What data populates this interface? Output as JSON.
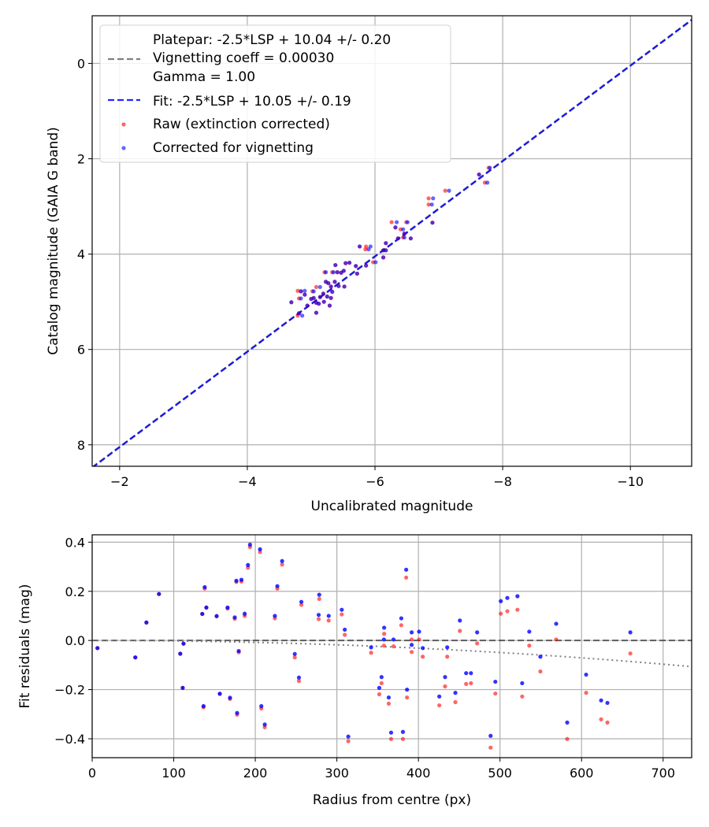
{
  "chart_data": [
    {
      "type": "scatter",
      "xlabel": "Uncalibrated magnitude",
      "ylabel": "Catalog magnitude (GAIA G band)",
      "xlim": [
        -1.57,
        -10.96
      ],
      "ylim": [
        8.45,
        -1.0
      ],
      "xticks": [
        -2,
        -4,
        -6,
        -8,
        -10
      ],
      "xtick_labels": [
        "−2",
        "−4",
        "−6",
        "−8",
        "−10"
      ],
      "yticks": [
        0,
        2,
        4,
        6,
        8
      ],
      "ytick_labels": [
        "0",
        "2",
        "4",
        "6",
        "8"
      ],
      "grid": true,
      "legend_placement": "top-left",
      "lines": [
        {
          "name": "platepar",
          "slope": 1,
          "intercept": 10.04,
          "color": "#808080",
          "style": "dashed"
        },
        {
          "name": "fit",
          "slope": 1,
          "intercept": 10.05,
          "color": "#0000ff",
          "style": "dashed"
        }
      ],
      "legend": [
        {
          "kind": "line",
          "color": "#808080",
          "lines": [
            "Platepar: -2.5*LSP + 10.04 +/- 0.20",
            "Vignetting coeff = 0.00030",
            "Gamma = 1.00"
          ]
        },
        {
          "kind": "line",
          "color": "#0000ff",
          "lines": [
            "Fit: -2.5*LSP + 10.05 +/- 0.19"
          ]
        },
        {
          "kind": "dot",
          "color": "#ff0000",
          "lines": [
            "Raw (extinction corrected)"
          ]
        },
        {
          "kind": "dot",
          "color": "#0000ff",
          "lines": [
            "Corrected for vignetting"
          ]
        }
      ],
      "series_note": "points are [raw_x, corrected_x, catalog_mag]",
      "points": [
        [
          -7.78,
          -7.8,
          2.19
        ],
        [
          -7.63,
          -7.63,
          2.33
        ],
        [
          -7.72,
          -7.76,
          2.5
        ],
        [
          -7.1,
          -7.16,
          2.67
        ],
        [
          -6.84,
          -6.91,
          2.83
        ],
        [
          -6.84,
          -6.89,
          2.96
        ],
        [
          -6.9,
          -6.9,
          3.34
        ],
        [
          -6.26,
          -6.34,
          3.33
        ],
        [
          -6.49,
          -6.51,
          3.33
        ],
        [
          -6.32,
          -6.32,
          3.44
        ],
        [
          -6.4,
          -6.44,
          3.48
        ],
        [
          -6.46,
          -6.46,
          3.57
        ],
        [
          -6.36,
          -6.36,
          3.67
        ],
        [
          -6.56,
          -6.56,
          3.67
        ],
        [
          -6.44,
          -6.46,
          3.65
        ],
        [
          -5.76,
          -5.76,
          3.84
        ],
        [
          -5.86,
          -5.93,
          3.84
        ],
        [
          -5.85,
          -5.9,
          3.9
        ],
        [
          -6.17,
          -6.17,
          3.77
        ],
        [
          -6.13,
          -6.13,
          3.92
        ],
        [
          -6.17,
          -6.17,
          3.92
        ],
        [
          -6.13,
          -6.13,
          4.07
        ],
        [
          -5.97,
          -6.01,
          4.17
        ],
        [
          -5.86,
          -5.86,
          4.24
        ],
        [
          -5.7,
          -5.7,
          4.25
        ],
        [
          -5.72,
          -5.72,
          4.41
        ],
        [
          -5.6,
          -5.6,
          4.18
        ],
        [
          -5.54,
          -5.54,
          4.19
        ],
        [
          -5.38,
          -5.38,
          4.23
        ],
        [
          -5.21,
          -5.23,
          4.38
        ],
        [
          -5.33,
          -5.35,
          4.38
        ],
        [
          -5.41,
          -5.41,
          4.38
        ],
        [
          -5.51,
          -5.51,
          4.35
        ],
        [
          -5.47,
          -5.47,
          4.39
        ],
        [
          -5.43,
          -5.43,
          4.67
        ],
        [
          -5.52,
          -5.52,
          4.68
        ],
        [
          -5.37,
          -5.37,
          4.58
        ],
        [
          -5.23,
          -5.23,
          4.58
        ],
        [
          -5.27,
          -5.27,
          4.61
        ],
        [
          -5.08,
          -5.14,
          4.69
        ],
        [
          -5.31,
          -5.31,
          4.68
        ],
        [
          -5.33,
          -5.33,
          4.79
        ],
        [
          -4.79,
          -4.9,
          4.77
        ],
        [
          -4.84,
          -4.84,
          4.78
        ],
        [
          -4.9,
          -4.9,
          4.85
        ],
        [
          -5.02,
          -5.04,
          4.78
        ],
        [
          -5.19,
          -5.19,
          4.83
        ],
        [
          -5.25,
          -5.25,
          4.89
        ],
        [
          -5.14,
          -5.14,
          4.9
        ],
        [
          -5.2,
          -5.2,
          5.0
        ],
        [
          -5.29,
          -5.29,
          5.08
        ],
        [
          -5.31,
          -5.31,
          4.92
        ],
        [
          -5.0,
          -5.0,
          4.94
        ],
        [
          -5.08,
          -5.08,
          5.02
        ],
        [
          -5.12,
          -5.12,
          5.04
        ],
        [
          -4.81,
          -4.84,
          4.93
        ],
        [
          -4.69,
          -4.69,
          5.01
        ],
        [
          -5.04,
          -5.04,
          4.92
        ],
        [
          -4.79,
          -4.86,
          5.29
        ],
        [
          -5.08,
          -5.08,
          5.23
        ],
        [
          -4.81,
          -4.81,
          5.24
        ],
        [
          -4.94,
          -4.94,
          5.08
        ]
      ]
    },
    {
      "type": "scatter",
      "xlabel": "Radius from centre (px)",
      "ylabel": "Fit residuals (mag)",
      "xlim": [
        0,
        735
      ],
      "ylim": [
        -0.477,
        0.43
      ],
      "xticks": [
        0,
        100,
        200,
        300,
        400,
        500,
        600,
        700
      ],
      "xtick_labels": [
        "0",
        "100",
        "200",
        "300",
        "400",
        "500",
        "600",
        "700"
      ],
      "yticks": [
        0.4,
        0.2,
        0.0,
        -0.2,
        -0.4
      ],
      "ytick_labels": [
        "0.4",
        "0.2",
        "0.0",
        "−0.2",
        "−0.4"
      ],
      "grid": true,
      "zero_line": {
        "y": 0,
        "color": "#404040",
        "style": "dashed"
      },
      "vignetting_curve": {
        "coeff": 0.0003,
        "color": "#808080",
        "style": "dotted"
      },
      "series_note": "points are [radius, raw_residual, corrected_residual]",
      "raw_color": "#ff0000",
      "corrected_color": "#0000ff",
      "points": [
        [
          6.5,
          -0.031,
          -0.031
        ],
        [
          52.9,
          -0.069,
          -0.069
        ],
        [
          66.5,
          0.073,
          0.073
        ],
        [
          81.9,
          0.189,
          0.189
        ],
        [
          108,
          -0.054,
          -0.054
        ],
        [
          112,
          -0.013,
          -0.013
        ],
        [
          111,
          -0.193,
          -0.193
        ],
        [
          138,
          0.211,
          0.217
        ],
        [
          140,
          0.134,
          0.134
        ],
        [
          135,
          0.108,
          0.108
        ],
        [
          136.5,
          -0.272,
          -0.267
        ],
        [
          152.6,
          0.099,
          0.099
        ],
        [
          156.5,
          -0.217,
          -0.217
        ],
        [
          166,
          0.13,
          0.134
        ],
        [
          169,
          -0.238,
          -0.233
        ],
        [
          174.8,
          0.088,
          0.094
        ],
        [
          176.8,
          0.238,
          0.243
        ],
        [
          183,
          0.24,
          0.247
        ],
        [
          187,
          0.1,
          0.109
        ],
        [
          179.7,
          -0.048,
          -0.043
        ],
        [
          177.7,
          -0.302,
          -0.295
        ],
        [
          191,
          0.296,
          0.307
        ],
        [
          193.5,
          0.38,
          0.39
        ],
        [
          205.8,
          0.36,
          0.371
        ],
        [
          207.4,
          -0.277,
          -0.267
        ],
        [
          211.6,
          -0.353,
          -0.342
        ],
        [
          224,
          0.09,
          0.1
        ],
        [
          227,
          0.211,
          0.221
        ],
        [
          232.9,
          0.309,
          0.323
        ],
        [
          248.4,
          -0.069,
          -0.055
        ],
        [
          253.5,
          -0.165,
          -0.151
        ],
        [
          256.5,
          0.145,
          0.157
        ],
        [
          277.7,
          0.087,
          0.104
        ],
        [
          278.4,
          0.169,
          0.186
        ],
        [
          290,
          0.081,
          0.1
        ],
        [
          306,
          0.106,
          0.125
        ],
        [
          309.7,
          0.023,
          0.044
        ],
        [
          314,
          -0.41,
          -0.391
        ],
        [
          342,
          -0.05,
          -0.028
        ],
        [
          358,
          0.027,
          0.052
        ],
        [
          357.7,
          -0.021,
          0.004
        ],
        [
          354.8,
          -0.174,
          -0.149
        ],
        [
          352,
          -0.219,
          -0.193
        ],
        [
          363.6,
          -0.257,
          -0.232
        ],
        [
          366.5,
          -0.401,
          -0.375
        ],
        [
          369.4,
          -0.024,
          0.004
        ],
        [
          379,
          0.062,
          0.09
        ],
        [
          381,
          -0.401,
          -0.372
        ],
        [
          385,
          0.256,
          0.288
        ],
        [
          386,
          -0.232,
          -0.2
        ],
        [
          391.7,
          0.004,
          0.033
        ],
        [
          391.7,
          -0.047,
          -0.018
        ],
        [
          400.8,
          0.004,
          0.036
        ],
        [
          405.3,
          -0.066,
          -0.031
        ],
        [
          425.6,
          -0.264,
          -0.228
        ],
        [
          432.7,
          -0.187,
          -0.149
        ],
        [
          435.3,
          -0.066,
          -0.028
        ],
        [
          445.3,
          -0.251,
          -0.213
        ],
        [
          450.8,
          0.039,
          0.081
        ],
        [
          458.5,
          -0.177,
          -0.133
        ],
        [
          464.4,
          -0.174,
          -0.133
        ],
        [
          472,
          -0.012,
          0.033
        ],
        [
          488.5,
          -0.436,
          -0.388
        ],
        [
          494.3,
          -0.216,
          -0.168
        ],
        [
          501,
          0.109,
          0.16
        ],
        [
          509,
          0.119,
          0.173
        ],
        [
          521.4,
          0.125,
          0.18
        ],
        [
          527.2,
          -0.228,
          -0.174
        ],
        [
          535.9,
          -0.021,
          0.036
        ],
        [
          549.5,
          -0.126,
          -0.066
        ],
        [
          568.9,
          0.004,
          0.068
        ],
        [
          582.4,
          -0.401,
          -0.334
        ],
        [
          605.6,
          -0.213,
          -0.139
        ],
        [
          624,
          -0.321,
          -0.244
        ],
        [
          631.7,
          -0.334,
          -0.254
        ],
        [
          659.8,
          -0.053,
          0.033
        ]
      ]
    }
  ]
}
